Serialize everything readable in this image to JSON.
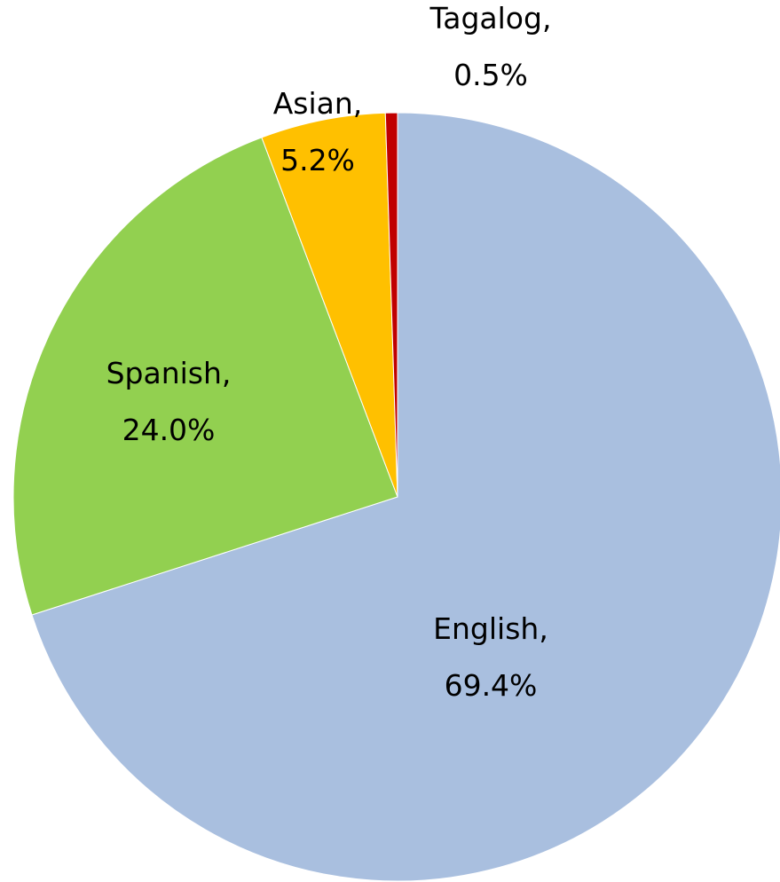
{
  "chart_data": {
    "type": "pie",
    "categories": [
      "English",
      "Spanish",
      "Asian",
      "Tagalog"
    ],
    "values": [
      69.4,
      24.0,
      5.2,
      0.5
    ],
    "value_labels": [
      "69.4%",
      "24.0%",
      "5.2%",
      "0.5%"
    ],
    "label_separator": ",",
    "colors": [
      "#a9bfdf",
      "#92d050",
      "#ffc000",
      "#c00000"
    ]
  }
}
